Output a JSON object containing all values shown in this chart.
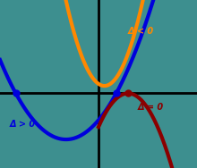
{
  "background_color": "#3d8f8f",
  "axis_color": "#000000",
  "blue_color": "#0000dd",
  "orange_color": "#ff8800",
  "red_color": "#8b0000",
  "label_delta_pos": "Δ > 0",
  "label_delta_zero": "Δ = 0",
  "label_delta_neg": "Δ < 0",
  "xlim": [
    -5,
    5
  ],
  "ylim": [
    -4,
    5
  ],
  "figsize": [
    2.2,
    1.88
  ],
  "dpi": 100
}
